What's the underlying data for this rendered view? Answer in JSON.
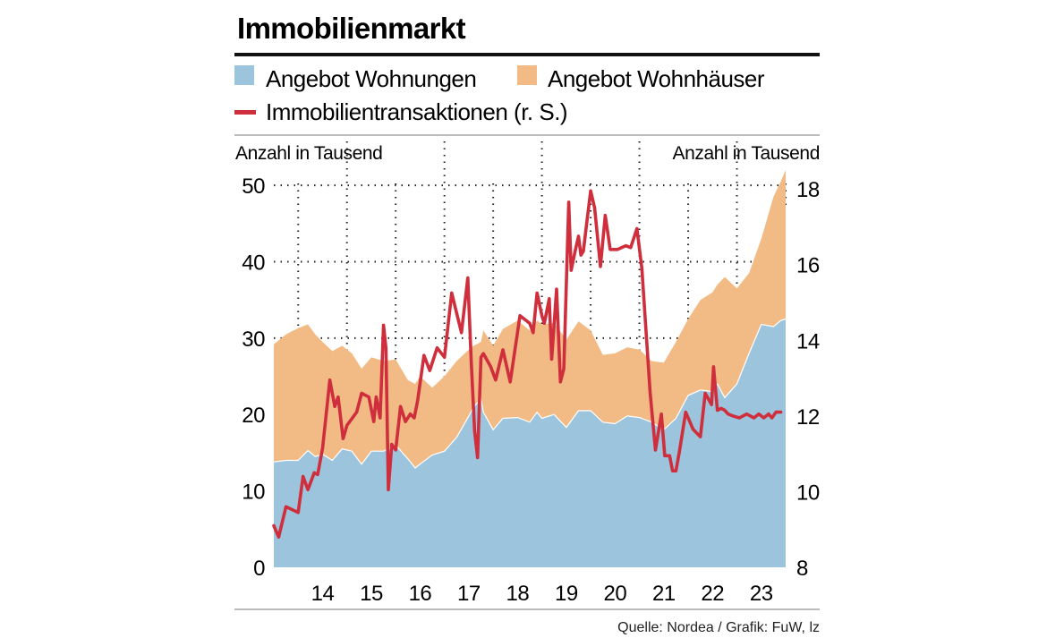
{
  "chart_data": {
    "type": "area",
    "title": "Immobilienmarkt",
    "source": "Quelle: Nordea / Grafik: FuW, lz",
    "left_axis": {
      "label": "Anzahl in Tausend",
      "range": [
        0,
        52
      ],
      "ticks": [
        "0",
        "10",
        "20",
        "30",
        "40",
        "50"
      ]
    },
    "right_axis": {
      "label": "Anzahl in Tausend",
      "range": [
        8,
        18.5
      ],
      "ticks": [
        "8",
        "10",
        "12",
        "14",
        "16",
        "18"
      ]
    },
    "x_axis": {
      "range": [
        2013.5,
        2024.0
      ],
      "ticks": [
        "14",
        "15",
        "16",
        "17",
        "18",
        "19",
        "20",
        "21",
        "22",
        "23"
      ]
    },
    "legend": [
      {
        "key": "wohnungen",
        "label": "Angebot Wohnungen",
        "color": "#9dc4dd",
        "style": "area"
      },
      {
        "key": "wohnhaeuser",
        "label": "Angebot Wohnhäuser",
        "color": "#f2bb85",
        "style": "area"
      },
      {
        "key": "transaktionen",
        "label": "Immobilientransaktionen (r. S.)",
        "color": "#cf2f3c",
        "style": "line"
      }
    ],
    "series": [
      {
        "name": "Angebot Wohnungen",
        "stack": "bottom",
        "axis": "left",
        "x": [
          2013.5,
          2013.75,
          2014.0,
          2014.2,
          2014.35,
          2014.5,
          2014.7,
          2014.9,
          2015.1,
          2015.3,
          2015.5,
          2015.75,
          2016.0,
          2016.25,
          2016.4,
          2016.5,
          2016.75,
          2017.0,
          2017.25,
          2017.5,
          2017.6,
          2017.75,
          2017.8,
          2018.0,
          2018.2,
          2018.5,
          2018.75,
          2018.9,
          2019.0,
          2019.25,
          2019.5,
          2019.75,
          2020.0,
          2020.25,
          2020.5,
          2020.75,
          2021.0,
          2021.25,
          2021.5,
          2021.75,
          2022.0,
          2022.25,
          2022.5,
          2022.6,
          2022.75,
          2023.0,
          2023.25,
          2023.5,
          2023.75,
          2023.9,
          2024.0
        ],
        "values": [
          13.8,
          14.0,
          14.0,
          15.3,
          14.5,
          14.8,
          14.0,
          15.5,
          15.2,
          13.5,
          15.2,
          15.2,
          16.0,
          14.2,
          13.0,
          13.5,
          14.7,
          15.2,
          17.0,
          19.8,
          21.0,
          22.0,
          20.3,
          18.0,
          19.5,
          19.6,
          19.0,
          20.3,
          19.5,
          20.0,
          18.3,
          20.5,
          20.5,
          19.0,
          18.8,
          19.8,
          19.6,
          19.0,
          18.0,
          19.5,
          22.5,
          23.2,
          23.0,
          24.0,
          22.2,
          24.0,
          28.0,
          31.8,
          31.5,
          32.3,
          32.5
        ]
      },
      {
        "name": "Angebot Wohnhäuser",
        "stack": "top (gesamt)",
        "axis": "left",
        "x": [
          2013.5,
          2013.75,
          2014.0,
          2014.2,
          2014.35,
          2014.5,
          2014.7,
          2014.9,
          2015.1,
          2015.3,
          2015.5,
          2015.75,
          2016.0,
          2016.25,
          2016.4,
          2016.5,
          2016.75,
          2017.0,
          2017.25,
          2017.5,
          2017.6,
          2017.75,
          2017.8,
          2018.0,
          2018.2,
          2018.5,
          2018.75,
          2018.9,
          2019.0,
          2019.25,
          2019.5,
          2019.75,
          2020.0,
          2020.25,
          2020.5,
          2020.75,
          2021.0,
          2021.25,
          2021.5,
          2021.75,
          2022.0,
          2022.25,
          2022.5,
          2022.6,
          2022.75,
          2023.0,
          2023.25,
          2023.5,
          2023.75,
          2023.9,
          2024.0
        ],
        "values": [
          29.2,
          30.5,
          31.3,
          31.8,
          30.5,
          29.5,
          28.3,
          29.0,
          28.0,
          26.0,
          27.5,
          27.0,
          27.2,
          24.5,
          24.0,
          25.0,
          23.5,
          25.0,
          27.0,
          28.5,
          29.0,
          29.5,
          31.0,
          29.0,
          31.2,
          32.3,
          31.0,
          32.3,
          31.8,
          32.0,
          29.8,
          32.2,
          31.0,
          27.8,
          28.0,
          28.8,
          28.5,
          27.0,
          26.8,
          29.5,
          32.5,
          35.0,
          36.0,
          37.0,
          38.0,
          36.5,
          38.5,
          43.0,
          48.5,
          50.5,
          52.0
        ]
      },
      {
        "name": "Immobilientransaktionen (r. S.)",
        "axis": "right",
        "x": [
          2013.5,
          2013.6,
          2013.75,
          2014.0,
          2014.1,
          2014.2,
          2014.33,
          2014.4,
          2014.5,
          2014.65,
          2014.75,
          2014.82,
          2014.92,
          2015.0,
          2015.2,
          2015.3,
          2015.45,
          2015.55,
          2015.6,
          2015.68,
          2015.75,
          2015.8,
          2015.85,
          2015.92,
          2016.0,
          2016.1,
          2016.2,
          2016.3,
          2016.38,
          2016.45,
          2016.58,
          2016.7,
          2016.85,
          2017.0,
          2017.15,
          2017.35,
          2017.48,
          2017.55,
          2017.62,
          2017.68,
          2017.75,
          2017.8,
          2017.95,
          2018.05,
          2018.2,
          2018.35,
          2018.55,
          2018.75,
          2018.82,
          2018.9,
          2019.0,
          2019.05,
          2019.15,
          2019.2,
          2019.3,
          2019.38,
          2019.45,
          2019.55,
          2019.6,
          2019.68,
          2019.75,
          2019.8,
          2019.85,
          2019.92,
          2020.0,
          2020.08,
          2020.2,
          2020.3,
          2020.4,
          2020.55,
          2020.72,
          2020.82,
          2020.95,
          2021.05,
          2021.22,
          2021.33,
          2021.45,
          2021.52,
          2021.62,
          2021.68,
          2021.75,
          2021.82,
          2021.95,
          2022.1,
          2022.25,
          2022.35,
          2022.48,
          2022.52,
          2022.6,
          2022.68,
          2022.75,
          2022.82,
          2022.92,
          2023.05,
          2023.2,
          2023.35,
          2023.45,
          2023.55,
          2023.65,
          2023.72,
          2023.8,
          2023.85,
          2023.9
        ],
        "values": [
          9.1,
          8.8,
          9.6,
          9.45,
          10.4,
          10.05,
          10.5,
          10.45,
          11.15,
          12.95,
          12.25,
          12.5,
          11.4,
          11.75,
          12.1,
          12.6,
          12.5,
          11.85,
          12.5,
          11.95,
          14.4,
          13.8,
          10.05,
          11.25,
          11.1,
          12.25,
          11.85,
          12.05,
          11.95,
          12.4,
          13.6,
          13.2,
          13.8,
          13.55,
          15.25,
          14.2,
          15.65,
          13.45,
          11.6,
          10.9,
          13.55,
          13.65,
          13.3,
          12.95,
          13.75,
          12.9,
          14.65,
          14.45,
          14.2,
          15.25,
          14.65,
          14.45,
          15.1,
          13.5,
          15.35,
          12.9,
          13.25,
          17.65,
          15.85,
          16.35,
          16.75,
          16.25,
          16.35,
          17.1,
          17.95,
          17.5,
          15.95,
          17.3,
          16.4,
          16.4,
          16.5,
          16.45,
          16.95,
          15.9,
          12.6,
          11.1,
          12.05,
          10.95,
          10.95,
          10.55,
          10.55,
          11.05,
          12.1,
          11.65,
          11.45,
          12.6,
          12.3,
          13.3,
          12.15,
          12.2,
          12.15,
          12.05,
          12.0,
          11.95,
          12.05,
          11.95,
          12.05,
          11.95,
          12.05,
          11.95,
          12.1,
          12.1,
          12.1
        ]
      }
    ]
  }
}
